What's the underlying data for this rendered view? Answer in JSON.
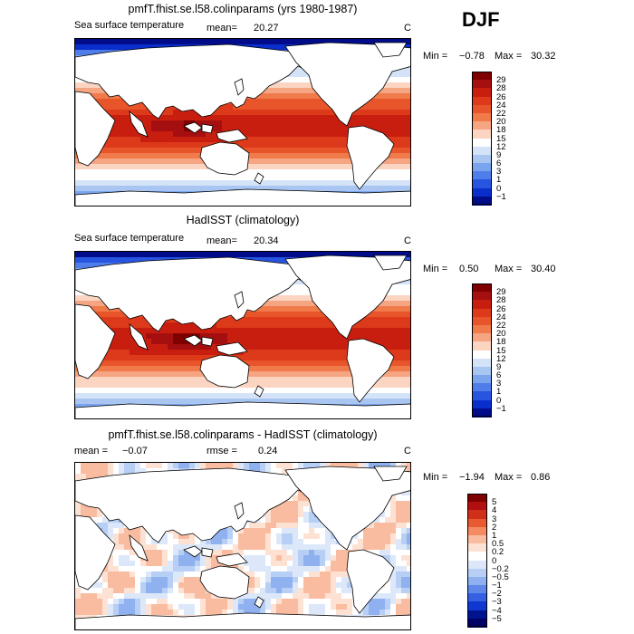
{
  "season": "DJF",
  "panels": [
    {
      "title": "pmfT.fhist.se.l58.colinparams (yrs 1980-1987)",
      "variable": "Sea surface temperature",
      "mean_label": "mean=",
      "mean": "20.27",
      "units": "C",
      "min_label": "Min =",
      "min": "−0.78",
      "max_label": "Max =",
      "max": "30.32",
      "levels": [
        "29",
        "28",
        "26",
        "24",
        "22",
        "20",
        "18",
        "15",
        "12",
        "9",
        "6",
        "3",
        "1",
        "0",
        "−1"
      ]
    },
    {
      "title": "HadISST (climatology)",
      "variable": "Sea surface temperature",
      "mean_label": "mean=",
      "mean": "20.34",
      "units": "C",
      "min_label": "Min =",
      "min": "0.50",
      "max_label": "Max =",
      "max": "30.40",
      "levels": [
        "29",
        "28",
        "26",
        "24",
        "22",
        "20",
        "18",
        "15",
        "12",
        "9",
        "6",
        "3",
        "1",
        "0",
        "−1"
      ]
    },
    {
      "title": "pmfT.fhist.se.l58.colinparams - HadISST (climatology)",
      "mean_label": "mean =",
      "mean": "−0.07",
      "rmse_label": "rmse =",
      "rmse": "0.24",
      "units": "C",
      "min_label": "Min =",
      "min": "−1.94",
      "max_label": "Max =",
      "max": "0.86",
      "levels": [
        "5",
        "4",
        "3",
        "2",
        "1",
        "0.5",
        "0.2",
        "0",
        "−0.2",
        "−0.5",
        "−1",
        "−2",
        "−3",
        "−4",
        "−5"
      ]
    }
  ],
  "colors": {
    "sst_scale": [
      "#7f0000",
      "#a50f0f",
      "#c81e10",
      "#dc3a1a",
      "#e8552b",
      "#f07a4a",
      "#f6a583",
      "#fbd5c2",
      "#ffffff",
      "#d4e3f7",
      "#a9c6f2",
      "#7aa5ee",
      "#4f7de9",
      "#2855e0",
      "#0a2ecb",
      "#000c8a"
    ],
    "diff_scale": [
      "#7f0000",
      "#b01010",
      "#d0301a",
      "#e85a30",
      "#f48a60",
      "#f9bca0",
      "#fde2d4",
      "#ffffff",
      "#dce8f9",
      "#b7cff5",
      "#8fb1f0",
      "#5f88ea",
      "#3560e2",
      "#1037cf",
      "#00148f",
      "#000066"
    ],
    "land": "#ffffff",
    "coast": "#000000"
  }
}
